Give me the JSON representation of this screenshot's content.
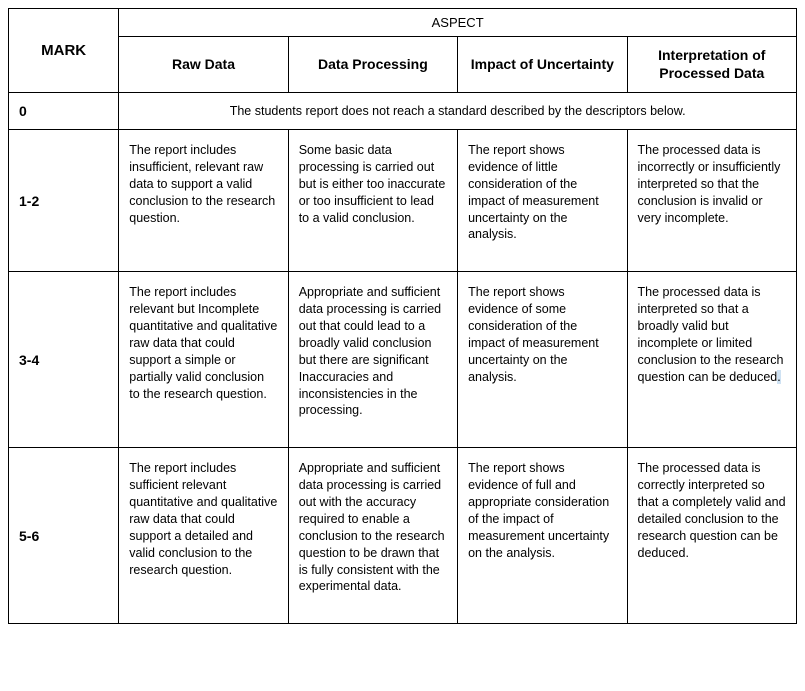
{
  "headers": {
    "mark": "MARK",
    "aspect": "ASPECT",
    "cols": [
      "Raw Data",
      "Data Processing",
      "Impact of Uncertainty",
      "Interpretation of Processed Data"
    ]
  },
  "rows": [
    {
      "mark": "0",
      "spanning": true,
      "text": "The students report does not reach a standard described by the descriptors below."
    },
    {
      "mark": "1-2",
      "cells": [
        "The report includes insufficient, relevant raw data to support a valid conclusion to the research question.",
        "Some basic data processing is carried out but is either too inaccurate or too insufficient to lead to a valid conclusion.",
        "The report shows evidence of little consideration of the impact of measurement uncertainty on the analysis.",
        "The processed data is incorrectly or insufficiently interpreted so that the conclusion is invalid or very incomplete."
      ]
    },
    {
      "mark": "3-4",
      "cells": [
        "The report includes relevant but Incomplete quantitative and qualitative raw data that could support a simple or partially valid conclusion to the research question.",
        "Appropriate and sufficient data processing is carried out that could lead to a broadly valid conclusion but there are significant Inaccuracies and inconsistencies in the processing.",
        "The report shows evidence of some consideration of the impact of measurement uncertainty on the analysis.",
        "The processed data is interpreted so that a broadly valid but incomplete or limited conclusion to the research question can be deduced."
      ],
      "highlight_tail": 3
    },
    {
      "mark": "5-6",
      "cells": [
        "The report includes sufficient relevant quantitative and qualitative raw data that could support a detailed and valid conclusion to the research question.",
        "Appropriate and sufficient data processing is carried out with the accuracy required to enable a conclusion to the research question to be drawn that is fully consistent with the experimental data.",
        "The report shows evidence of full and appropriate consideration of the impact of measurement uncertainty on the analysis.",
        "The processed data is correctly interpreted so that a completely valid and detailed conclusion to the research question can be deduced."
      ]
    }
  ]
}
